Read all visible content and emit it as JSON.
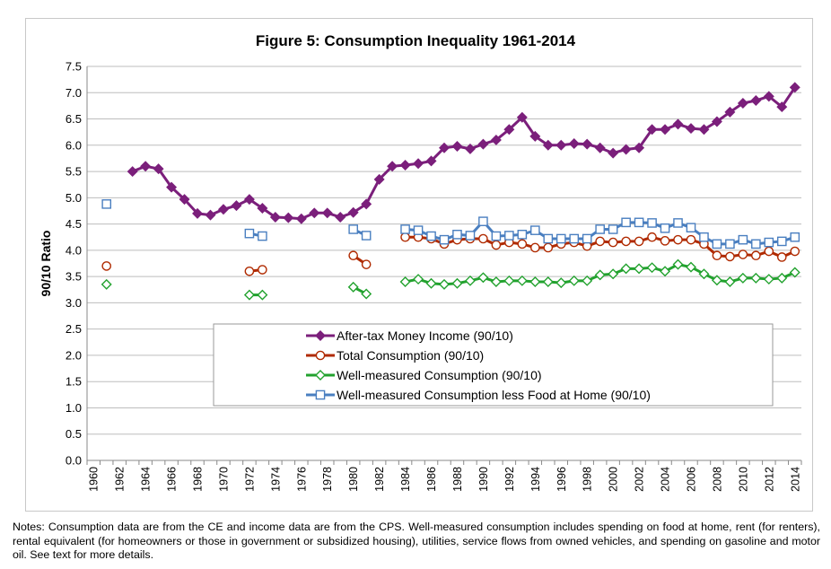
{
  "chart_data": {
    "type": "line",
    "title": "Figure 5: Consumption Inequality 1961-2014",
    "ylabel": "90/10 Ratio",
    "xlabel": "",
    "ylim": [
      0,
      7.5
    ],
    "yticks": [
      "0.0",
      "0.5",
      "1.0",
      "1.5",
      "2.0",
      "2.5",
      "3.0",
      "3.5",
      "4.0",
      "4.5",
      "5.0",
      "5.5",
      "6.0",
      "6.5",
      "7.0",
      "7.5"
    ],
    "xlim": [
      1960,
      2014
    ],
    "xticks": [
      1960,
      1962,
      1964,
      1966,
      1968,
      1970,
      1972,
      1974,
      1976,
      1978,
      1980,
      1982,
      1984,
      1986,
      1988,
      1990,
      1992,
      1994,
      1996,
      1998,
      2000,
      2002,
      2004,
      2006,
      2008,
      2010,
      2012,
      2014
    ],
    "grid": true,
    "legend_position": "bottom-center",
    "series": [
      {
        "name": "After-tax Money Income (90/10)",
        "color": "#7b1f7b",
        "marker": "diamond",
        "filled": true,
        "segments": [
          [
            [
              1963,
              5.5
            ],
            [
              1964,
              5.6
            ],
            [
              1965,
              5.55
            ],
            [
              1966,
              5.2
            ],
            [
              1967,
              4.97
            ],
            [
              1968,
              4.7
            ],
            [
              1969,
              4.67
            ],
            [
              1970,
              4.78
            ],
            [
              1971,
              4.85
            ],
            [
              1972,
              4.97
            ],
            [
              1973,
              4.8
            ],
            [
              1974,
              4.63
            ],
            [
              1975,
              4.62
            ],
            [
              1976,
              4.6
            ],
            [
              1977,
              4.71
            ],
            [
              1978,
              4.71
            ],
            [
              1979,
              4.63
            ],
            [
              1980,
              4.72
            ],
            [
              1981,
              4.88
            ],
            [
              1982,
              5.35
            ],
            [
              1983,
              5.6
            ],
            [
              1984,
              5.62
            ],
            [
              1985,
              5.65
            ],
            [
              1986,
              5.7
            ],
            [
              1987,
              5.95
            ],
            [
              1988,
              5.98
            ],
            [
              1989,
              5.93
            ],
            [
              1990,
              6.02
            ],
            [
              1991,
              6.1
            ],
            [
              1992,
              6.3
            ],
            [
              1993,
              6.53
            ],
            [
              1994,
              6.17
            ],
            [
              1995,
              6.0
            ],
            [
              1996,
              6.0
            ],
            [
              1997,
              6.03
            ],
            [
              1998,
              6.02
            ],
            [
              1999,
              5.95
            ],
            [
              2000,
              5.85
            ],
            [
              2001,
              5.92
            ],
            [
              2002,
              5.95
            ],
            [
              2003,
              6.3
            ],
            [
              2004,
              6.3
            ],
            [
              2005,
              6.4
            ],
            [
              2006,
              6.32
            ],
            [
              2007,
              6.3
            ],
            [
              2008,
              6.45
            ],
            [
              2009,
              6.63
            ],
            [
              2010,
              6.8
            ],
            [
              2011,
              6.85
            ],
            [
              2012,
              6.93
            ],
            [
              2013,
              6.73
            ],
            [
              2014,
              7.1
            ]
          ]
        ]
      },
      {
        "name": "Total Consumption (90/10)",
        "color": "#b02a00",
        "marker": "circle",
        "filled": false,
        "segments": [
          [
            [
              1961,
              3.7
            ]
          ],
          [
            [
              1972,
              3.6
            ],
            [
              1973,
              3.63
            ]
          ],
          [
            [
              1980,
              3.9
            ],
            [
              1981,
              3.73
            ]
          ],
          [
            [
              1984,
              4.25
            ],
            [
              1985,
              4.25
            ],
            [
              1986,
              4.22
            ],
            [
              1987,
              4.12
            ],
            [
              1988,
              4.2
            ],
            [
              1989,
              4.22
            ],
            [
              1990,
              4.22
            ],
            [
              1991,
              4.1
            ],
            [
              1992,
              4.15
            ],
            [
              1993,
              4.12
            ],
            [
              1994,
              4.05
            ],
            [
              1995,
              4.05
            ],
            [
              1996,
              4.12
            ],
            [
              1997,
              4.15
            ],
            [
              1998,
              4.08
            ],
            [
              1999,
              4.17
            ],
            [
              2000,
              4.15
            ],
            [
              2001,
              4.17
            ],
            [
              2002,
              4.17
            ],
            [
              2003,
              4.25
            ],
            [
              2004,
              4.18
            ],
            [
              2005,
              4.2
            ],
            [
              2006,
              4.2
            ],
            [
              2007,
              4.12
            ],
            [
              2008,
              3.9
            ],
            [
              2009,
              3.88
            ],
            [
              2010,
              3.92
            ],
            [
              2011,
              3.9
            ],
            [
              2012,
              3.98
            ],
            [
              2013,
              3.87
            ],
            [
              2014,
              3.98
            ]
          ]
        ]
      },
      {
        "name": "Well-measured Consumption (90/10)",
        "color": "#22a22e",
        "marker": "diamond",
        "filled": false,
        "segments": [
          [
            [
              1961,
              3.35
            ]
          ],
          [
            [
              1972,
              3.15
            ],
            [
              1973,
              3.15
            ]
          ],
          [
            [
              1980,
              3.3
            ],
            [
              1981,
              3.17
            ]
          ],
          [
            [
              1984,
              3.4
            ],
            [
              1985,
              3.45
            ],
            [
              1986,
              3.37
            ],
            [
              1987,
              3.35
            ],
            [
              1988,
              3.37
            ],
            [
              1989,
              3.42
            ],
            [
              1990,
              3.48
            ],
            [
              1991,
              3.4
            ],
            [
              1992,
              3.42
            ],
            [
              1993,
              3.42
            ],
            [
              1994,
              3.4
            ],
            [
              1995,
              3.4
            ],
            [
              1996,
              3.38
            ],
            [
              1997,
              3.42
            ],
            [
              1998,
              3.42
            ],
            [
              1999,
              3.53
            ],
            [
              2000,
              3.55
            ],
            [
              2001,
              3.65
            ],
            [
              2002,
              3.65
            ],
            [
              2003,
              3.67
            ],
            [
              2004,
              3.6
            ],
            [
              2005,
              3.73
            ],
            [
              2006,
              3.68
            ],
            [
              2007,
              3.55
            ],
            [
              2008,
              3.43
            ],
            [
              2009,
              3.4
            ],
            [
              2010,
              3.47
            ],
            [
              2011,
              3.47
            ],
            [
              2012,
              3.45
            ],
            [
              2013,
              3.47
            ],
            [
              2014,
              3.58
            ]
          ]
        ]
      },
      {
        "name": "Well-measured Consumption less Food at Home (90/10)",
        "color": "#4a7fc0",
        "marker": "square",
        "filled": false,
        "segments": [
          [
            [
              1961,
              4.88
            ]
          ],
          [
            [
              1972,
              4.32
            ],
            [
              1973,
              4.27
            ]
          ],
          [
            [
              1980,
              4.4
            ],
            [
              1981,
              4.28
            ]
          ],
          [
            [
              1984,
              4.4
            ],
            [
              1985,
              4.38
            ],
            [
              1986,
              4.27
            ],
            [
              1987,
              4.2
            ],
            [
              1988,
              4.3
            ],
            [
              1989,
              4.28
            ],
            [
              1990,
              4.55
            ],
            [
              1991,
              4.27
            ],
            [
              1992,
              4.28
            ],
            [
              1993,
              4.3
            ],
            [
              1994,
              4.38
            ],
            [
              1995,
              4.22
            ],
            [
              1996,
              4.22
            ],
            [
              1997,
              4.22
            ],
            [
              1998,
              4.22
            ],
            [
              1999,
              4.4
            ],
            [
              2000,
              4.4
            ],
            [
              2001,
              4.53
            ],
            [
              2002,
              4.53
            ],
            [
              2003,
              4.52
            ],
            [
              2004,
              4.42
            ],
            [
              2005,
              4.52
            ],
            [
              2006,
              4.43
            ],
            [
              2007,
              4.25
            ],
            [
              2008,
              4.12
            ],
            [
              2009,
              4.12
            ],
            [
              2010,
              4.2
            ],
            [
              2011,
              4.12
            ],
            [
              2012,
              4.15
            ],
            [
              2013,
              4.17
            ],
            [
              2014,
              4.25
            ]
          ]
        ]
      }
    ]
  },
  "notes": "Notes:  Consumption data are from the CE and income data are from the CPS. Well-measured consumption includes spending on food at home, rent (for renters), rental equivalent (for homeowners or those in government or subsidized housing), utilities, service flows from owned vehicles, and spending on gasoline and motor oil. See text for more details."
}
